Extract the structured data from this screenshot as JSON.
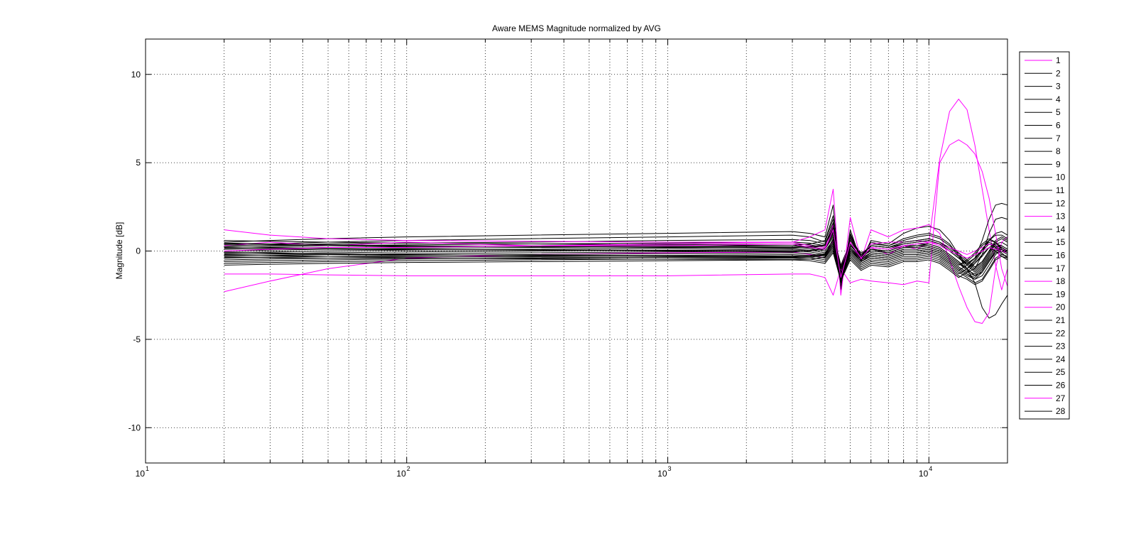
{
  "chart_data": {
    "type": "line",
    "title": "Aware MEMS Magnitude normalized by AVG",
    "xlabel": "",
    "ylabel": "Magnitude [dB]",
    "xscale": "log",
    "xlim": [
      10,
      20000
    ],
    "ylim": [
      -12,
      12
    ],
    "x_ticks": [
      {
        "base": "10",
        "exp": "1",
        "value": 10
      },
      {
        "base": "10",
        "exp": "2",
        "value": 100
      },
      {
        "base": "10",
        "exp": "3",
        "value": 1000
      },
      {
        "base": "10",
        "exp": "4",
        "value": 10000
      }
    ],
    "y_ticks": [
      {
        "label": "10",
        "value": 10
      },
      {
        "label": "5",
        "value": 5
      },
      {
        "label": "0",
        "value": 0
      },
      {
        "label": "-5",
        "value": -5
      },
      {
        "label": "-10",
        "value": -10
      }
    ],
    "grid": true,
    "legend_position": "outside-right",
    "colors": {
      "black": "#000000",
      "magenta": "#ff00ff"
    },
    "x": [
      20,
      30,
      50,
      100,
      300,
      1000,
      3000,
      3500,
      4000,
      4300,
      4600,
      5000,
      5500,
      6000,
      7000,
      8000,
      9000,
      10000,
      11000,
      12000,
      13000,
      14000,
      15000,
      16000,
      17000,
      18000,
      19000,
      20000
    ],
    "series": [
      {
        "name": "1",
        "color": "magenta",
        "values": [
          -2.3,
          -1.7,
          -1.0,
          -0.4,
          -0.2,
          -0.1,
          -0.05,
          -0.2,
          -0.4,
          0.6,
          -0.8,
          0.4,
          -0.5,
          0.2,
          -0.2,
          0.3,
          0.1,
          0.5,
          5.2,
          7.9,
          8.6,
          8.0,
          6.0,
          3.5,
          1.2,
          -0.8,
          -2.2,
          -1.0
        ]
      },
      {
        "name": "2",
        "color": "black",
        "values": [
          0.5,
          0.6,
          0.7,
          0.8,
          0.9,
          1.0,
          1.1,
          1.0,
          0.8,
          2.6,
          -2.2,
          1.2,
          -0.6,
          0.6,
          0.4,
          1.0,
          1.3,
          1.4,
          1.2,
          0.6,
          -0.2,
          -0.8,
          -0.4,
          0.6,
          1.8,
          2.6,
          2.7,
          2.6
        ]
      },
      {
        "name": "3",
        "color": "black",
        "values": [
          0.4,
          0.4,
          0.5,
          0.6,
          0.7,
          0.8,
          0.9,
          0.8,
          0.5,
          1.8,
          -1.6,
          0.9,
          -0.3,
          0.4,
          0.3,
          0.7,
          0.9,
          1.0,
          0.8,
          0.4,
          -0.3,
          -1.0,
          -1.8,
          -3.2,
          -3.8,
          -3.6,
          -3.0,
          -2.5
        ]
      },
      {
        "name": "4",
        "color": "black",
        "values": [
          0.3,
          0.35,
          0.4,
          0.45,
          0.5,
          0.6,
          0.65,
          0.6,
          0.4,
          1.4,
          -1.2,
          0.7,
          -0.2,
          0.3,
          0.2,
          0.5,
          0.6,
          0.7,
          0.5,
          0.2,
          -0.2,
          -0.6,
          -1.0,
          -0.2,
          1.0,
          1.8,
          1.9,
          1.8
        ]
      },
      {
        "name": "5",
        "color": "black",
        "values": [
          0.2,
          0.25,
          0.3,
          0.35,
          0.4,
          0.45,
          0.5,
          0.45,
          0.3,
          1.2,
          -1.0,
          0.6,
          -0.1,
          0.2,
          0.1,
          0.4,
          0.5,
          0.6,
          0.4,
          0.0,
          -0.4,
          -0.8,
          -1.2,
          -0.8,
          -0.2,
          0.4,
          0.5,
          0.3
        ]
      },
      {
        "name": "6",
        "color": "black",
        "values": [
          0.1,
          0.15,
          0.2,
          0.25,
          0.3,
          0.35,
          0.4,
          0.35,
          0.2,
          1.0,
          -0.8,
          0.5,
          -0.2,
          0.1,
          0.0,
          0.3,
          0.4,
          0.4,
          0.2,
          -0.2,
          -0.6,
          -1.0,
          -0.6,
          0.0,
          0.6,
          1.0,
          1.1,
          0.9
        ]
      },
      {
        "name": "7",
        "color": "black",
        "values": [
          0.0,
          0.05,
          0.1,
          0.15,
          0.2,
          0.25,
          0.3,
          0.25,
          0.1,
          0.8,
          -0.9,
          0.3,
          -0.3,
          0.0,
          -0.1,
          0.2,
          0.2,
          0.3,
          0.1,
          -0.3,
          -0.7,
          -1.1,
          -1.3,
          -0.9,
          -0.3,
          0.2,
          0.3,
          0.1
        ]
      },
      {
        "name": "8",
        "color": "black",
        "values": [
          -0.1,
          -0.05,
          0.0,
          0.05,
          0.1,
          0.15,
          0.2,
          0.15,
          0.0,
          0.6,
          -1.0,
          0.2,
          -0.4,
          -0.1,
          -0.2,
          0.1,
          0.1,
          0.2,
          0.0,
          -0.4,
          -0.8,
          -0.6,
          -0.2,
          0.3,
          0.6,
          0.5,
          0.2,
          0.0
        ]
      },
      {
        "name": "9",
        "color": "black",
        "values": [
          -0.2,
          -0.15,
          -0.1,
          -0.05,
          0.0,
          0.05,
          0.1,
          0.05,
          -0.1,
          0.5,
          -1.1,
          0.1,
          -0.5,
          -0.2,
          -0.3,
          0.0,
          0.0,
          0.1,
          -0.1,
          -0.5,
          -0.9,
          -1.2,
          -1.4,
          -1.2,
          -0.6,
          0.0,
          0.2,
          0.0
        ]
      },
      {
        "name": "10",
        "color": "black",
        "values": [
          -0.3,
          -0.25,
          -0.2,
          -0.15,
          -0.1,
          -0.05,
          0.0,
          -0.05,
          -0.2,
          0.4,
          -1.2,
          0.0,
          -0.6,
          -0.3,
          -0.4,
          -0.1,
          -0.1,
          0.0,
          -0.2,
          -0.6,
          -1.0,
          -1.3,
          -1.6,
          -1.4,
          -0.8,
          -0.2,
          0.1,
          -0.1
        ]
      },
      {
        "name": "11",
        "color": "black",
        "values": [
          -0.4,
          -0.35,
          -0.3,
          -0.25,
          -0.2,
          -0.15,
          -0.1,
          -0.15,
          -0.3,
          0.3,
          -1.3,
          -0.1,
          -0.7,
          -0.4,
          -0.5,
          -0.2,
          -0.2,
          -0.1,
          -0.3,
          -0.7,
          -1.1,
          -0.8,
          -0.4,
          0.0,
          0.4,
          0.2,
          -0.2,
          -0.3
        ]
      },
      {
        "name": "12",
        "color": "black",
        "values": [
          -0.5,
          -0.45,
          -0.4,
          -0.35,
          -0.3,
          -0.25,
          -0.2,
          -0.25,
          -0.4,
          0.2,
          -1.4,
          -0.2,
          -0.8,
          -0.5,
          -0.6,
          -0.3,
          -0.3,
          -0.2,
          -0.4,
          -0.8,
          -1.2,
          -1.5,
          -1.8,
          -1.6,
          -1.0,
          -0.4,
          -0.2,
          -0.3
        ]
      },
      {
        "name": "13",
        "color": "magenta",
        "values": [
          1.2,
          0.9,
          0.7,
          0.6,
          0.55,
          0.5,
          0.5,
          0.8,
          1.2,
          3.5,
          -2.5,
          1.9,
          -0.5,
          1.2,
          0.8,
          1.2,
          1.3,
          1.5,
          1.0,
          -0.5,
          -2.0,
          -3.2,
          -4.0,
          -4.1,
          -3.5,
          -1.0,
          0.5,
          0.8
        ]
      },
      {
        "name": "14",
        "color": "black",
        "values": [
          -0.6,
          -0.55,
          -0.5,
          -0.45,
          -0.4,
          -0.35,
          -0.3,
          -0.35,
          -0.5,
          0.1,
          -1.5,
          -0.3,
          -0.9,
          -0.6,
          -0.7,
          -0.4,
          -0.4,
          -0.3,
          -0.5,
          -0.9,
          -1.3,
          -1.0,
          -0.5,
          0.1,
          0.5,
          0.3,
          -0.1,
          -0.4
        ]
      },
      {
        "name": "15",
        "color": "black",
        "values": [
          -0.7,
          -0.65,
          -0.6,
          -0.55,
          -0.5,
          -0.45,
          -0.4,
          -0.45,
          -0.6,
          0.0,
          -1.6,
          -0.4,
          -1.0,
          -0.7,
          -0.8,
          -0.5,
          -0.5,
          -0.4,
          -0.6,
          -1.0,
          -1.4,
          -1.6,
          -1.9,
          -1.7,
          -1.1,
          -0.5,
          -0.3,
          -0.4
        ]
      },
      {
        "name": "16",
        "color": "black",
        "values": [
          -0.8,
          -0.75,
          -0.7,
          -0.65,
          -0.6,
          -0.55,
          -0.5,
          -0.55,
          -0.7,
          -0.1,
          -1.7,
          -0.5,
          -1.1,
          -0.8,
          -0.9,
          -0.6,
          -0.6,
          -0.5,
          -0.7,
          -1.1,
          -1.5,
          -1.2,
          -0.7,
          -0.2,
          0.2,
          0.0,
          -0.3,
          -0.5
        ]
      },
      {
        "name": "17",
        "color": "black",
        "values": [
          0.6,
          0.55,
          0.5,
          0.45,
          0.4,
          0.35,
          0.3,
          0.4,
          0.6,
          2.0,
          -2.0,
          1.0,
          -0.4,
          0.5,
          0.3,
          0.6,
          0.8,
          0.9,
          0.7,
          0.3,
          -0.1,
          -0.5,
          -0.9,
          -0.6,
          0.0,
          0.6,
          0.8,
          0.6
        ]
      },
      {
        "name": "18",
        "color": "magenta",
        "values": [
          0.3,
          0.5,
          0.3,
          0.5,
          0.3,
          0.4,
          0.5,
          0.3,
          0.2,
          1.5,
          -1.2,
          0.8,
          -0.3,
          0.4,
          0.5,
          0.5,
          0.6,
          0.5,
          0.4,
          0.2,
          0.0,
          -0.2,
          0.0,
          0.2,
          0.4,
          0.3,
          0.1,
          0.0
        ]
      },
      {
        "name": "19",
        "color": "black",
        "values": [
          0.25,
          0.2,
          0.15,
          0.1,
          0.05,
          0.0,
          -0.05,
          0.0,
          0.1,
          1.1,
          -1.3,
          0.4,
          -0.4,
          0.1,
          -0.1,
          0.2,
          0.3,
          0.4,
          0.2,
          -0.2,
          -0.6,
          -1.0,
          -1.4,
          -1.0,
          -0.4,
          0.1,
          0.2,
          0.0
        ]
      },
      {
        "name": "20",
        "color": "magenta",
        "values": [
          -1.3,
          -1.3,
          -1.35,
          -1.4,
          -1.4,
          -1.4,
          -1.3,
          -1.3,
          -1.5,
          -2.5,
          -1.0,
          -1.8,
          -1.6,
          -1.7,
          -1.8,
          -1.9,
          -1.7,
          -1.8,
          5.0,
          6.0,
          6.3,
          6.0,
          5.5,
          4.5,
          3.0,
          1.0,
          -1.0,
          -2.0
        ]
      },
      {
        "name": "21",
        "color": "black",
        "values": [
          -0.05,
          -0.1,
          -0.15,
          -0.2,
          -0.25,
          -0.3,
          -0.35,
          -0.3,
          -0.2,
          0.7,
          -1.4,
          0.2,
          -0.5,
          -0.1,
          -0.2,
          0.1,
          0.1,
          0.2,
          0.0,
          -0.4,
          -0.8,
          -0.5,
          -0.1,
          0.4,
          0.7,
          0.5,
          0.1,
          -0.1
        ]
      },
      {
        "name": "22",
        "color": "black",
        "values": [
          0.45,
          0.4,
          0.35,
          0.3,
          0.25,
          0.2,
          0.15,
          0.2,
          0.3,
          1.6,
          -1.5,
          0.8,
          -0.3,
          0.3,
          0.2,
          0.5,
          0.6,
          0.7,
          0.5,
          0.1,
          -0.3,
          -0.7,
          -1.1,
          -0.7,
          -0.1,
          0.5,
          0.7,
          0.5
        ]
      },
      {
        "name": "23",
        "color": "black",
        "values": [
          0.15,
          0.12,
          0.1,
          0.08,
          0.06,
          0.04,
          0.02,
          0.05,
          0.15,
          0.9,
          -1.0,
          0.3,
          -0.2,
          0.1,
          0.0,
          0.3,
          0.3,
          0.3,
          0.1,
          -0.3,
          -0.7,
          -1.0,
          -0.7,
          -0.3,
          0.2,
          0.4,
          0.3,
          0.1
        ]
      },
      {
        "name": "24",
        "color": "black",
        "values": [
          -0.15,
          -0.17,
          -0.2,
          -0.22,
          -0.24,
          -0.26,
          -0.28,
          -0.25,
          -0.15,
          0.5,
          -1.6,
          0.1,
          -0.6,
          -0.2,
          -0.3,
          0.0,
          0.0,
          0.1,
          -0.1,
          -0.5,
          -0.9,
          -1.2,
          -1.0,
          -0.6,
          0.0,
          0.3,
          0.2,
          0.0
        ]
      },
      {
        "name": "25",
        "color": "black",
        "values": [
          0.35,
          0.32,
          0.3,
          0.28,
          0.26,
          0.24,
          0.22,
          0.25,
          0.35,
          1.3,
          -1.2,
          0.6,
          -0.2,
          0.3,
          0.2,
          0.4,
          0.5,
          0.6,
          0.4,
          0.0,
          -0.4,
          -0.7,
          -0.4,
          0.1,
          0.6,
          0.9,
          0.9,
          0.7
        ]
      },
      {
        "name": "26",
        "color": "black",
        "values": [
          -0.35,
          -0.37,
          -0.4,
          -0.42,
          -0.44,
          -0.46,
          -0.48,
          -0.45,
          -0.35,
          0.3,
          -1.8,
          -0.1,
          -0.7,
          -0.4,
          -0.5,
          -0.2,
          -0.2,
          -0.1,
          -0.3,
          -0.7,
          -1.1,
          -1.4,
          -1.6,
          -1.2,
          -0.6,
          -0.1,
          0.0,
          -0.2
        ]
      },
      {
        "name": "27",
        "color": "magenta",
        "values": [
          0.0,
          0.1,
          0.2,
          0.2,
          0.3,
          0.3,
          0.4,
          0.2,
          0.1,
          1.2,
          -1.5,
          0.5,
          -0.4,
          0.2,
          0.1,
          0.3,
          0.4,
          0.5,
          0.3,
          0.0,
          -0.2,
          -0.4,
          -0.2,
          0.0,
          0.2,
          0.1,
          0.0,
          -0.1
        ]
      },
      {
        "name": "28",
        "color": "black",
        "values": [
          -0.25,
          -0.27,
          -0.3,
          -0.32,
          -0.34,
          -0.36,
          -0.38,
          -0.35,
          -0.25,
          0.4,
          -1.7,
          0.0,
          -0.6,
          -0.3,
          -0.4,
          -0.1,
          -0.1,
          0.0,
          -0.2,
          -0.6,
          -1.0,
          -1.3,
          -1.5,
          -1.1,
          -0.5,
          0.0,
          0.1,
          -0.1
        ]
      }
    ]
  }
}
